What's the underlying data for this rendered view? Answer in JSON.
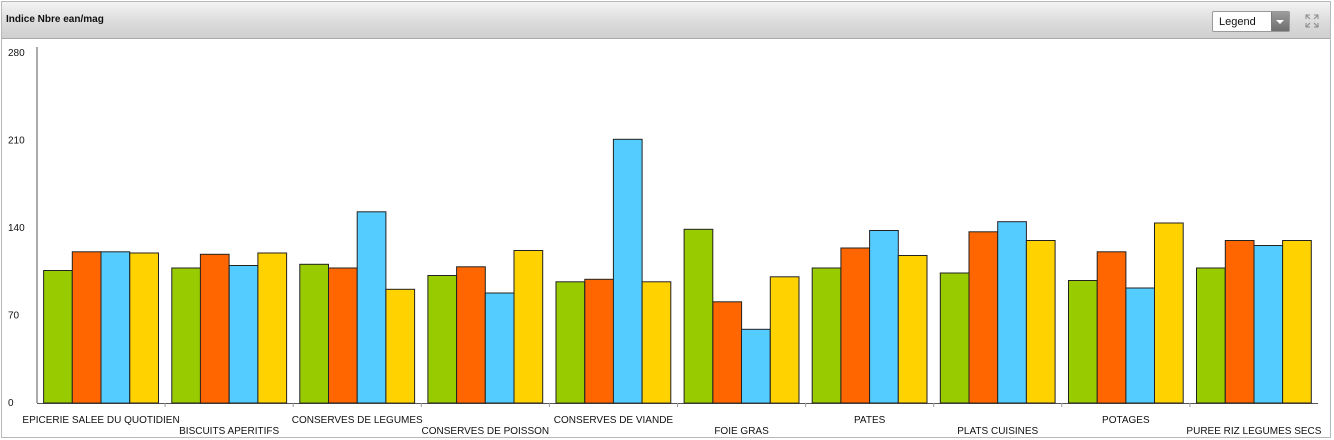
{
  "header": {
    "title": "Indice Nbre ean/mag",
    "legend_dropdown_value": "Legend",
    "expand_icon": "expand-icon"
  },
  "chart_data": {
    "type": "bar",
    "title": "Indice Nbre ean/mag",
    "xlabel": "",
    "ylabel": "",
    "ylim": [
      0,
      280
    ],
    "yticks": [
      0,
      70,
      140,
      210,
      280
    ],
    "grid": false,
    "legend": "dropdown top-right (collapsed)",
    "categories": [
      "EPICERIE SALEE DU QUOTIDIEN",
      "BISCUITS APERITIFS",
      "CONSERVES DE LEGUMES",
      "CONSERVES DE POISSON",
      "CONSERVES DE VIANDE",
      "FOIE GRAS",
      "PATES",
      "PLATS CUISINES",
      "POTAGES",
      "PUREE RIZ LEGUMES SECS"
    ],
    "series": [
      {
        "color": "#99cc00",
        "values": [
          106,
          108,
          111,
          102,
          97,
          139,
          108,
          104,
          98,
          108
        ]
      },
      {
        "color": "#ff6600",
        "values": [
          121,
          119,
          108,
          109,
          99,
          81,
          124,
          137,
          121,
          130
        ]
      },
      {
        "color": "#55ccff",
        "values": [
          121,
          110,
          153,
          88,
          211,
          59,
          138,
          145,
          92,
          126
        ]
      },
      {
        "color": "#ffd200",
        "values": [
          120,
          120,
          91,
          122,
          97,
          101,
          118,
          130,
          144,
          130
        ]
      }
    ]
  }
}
